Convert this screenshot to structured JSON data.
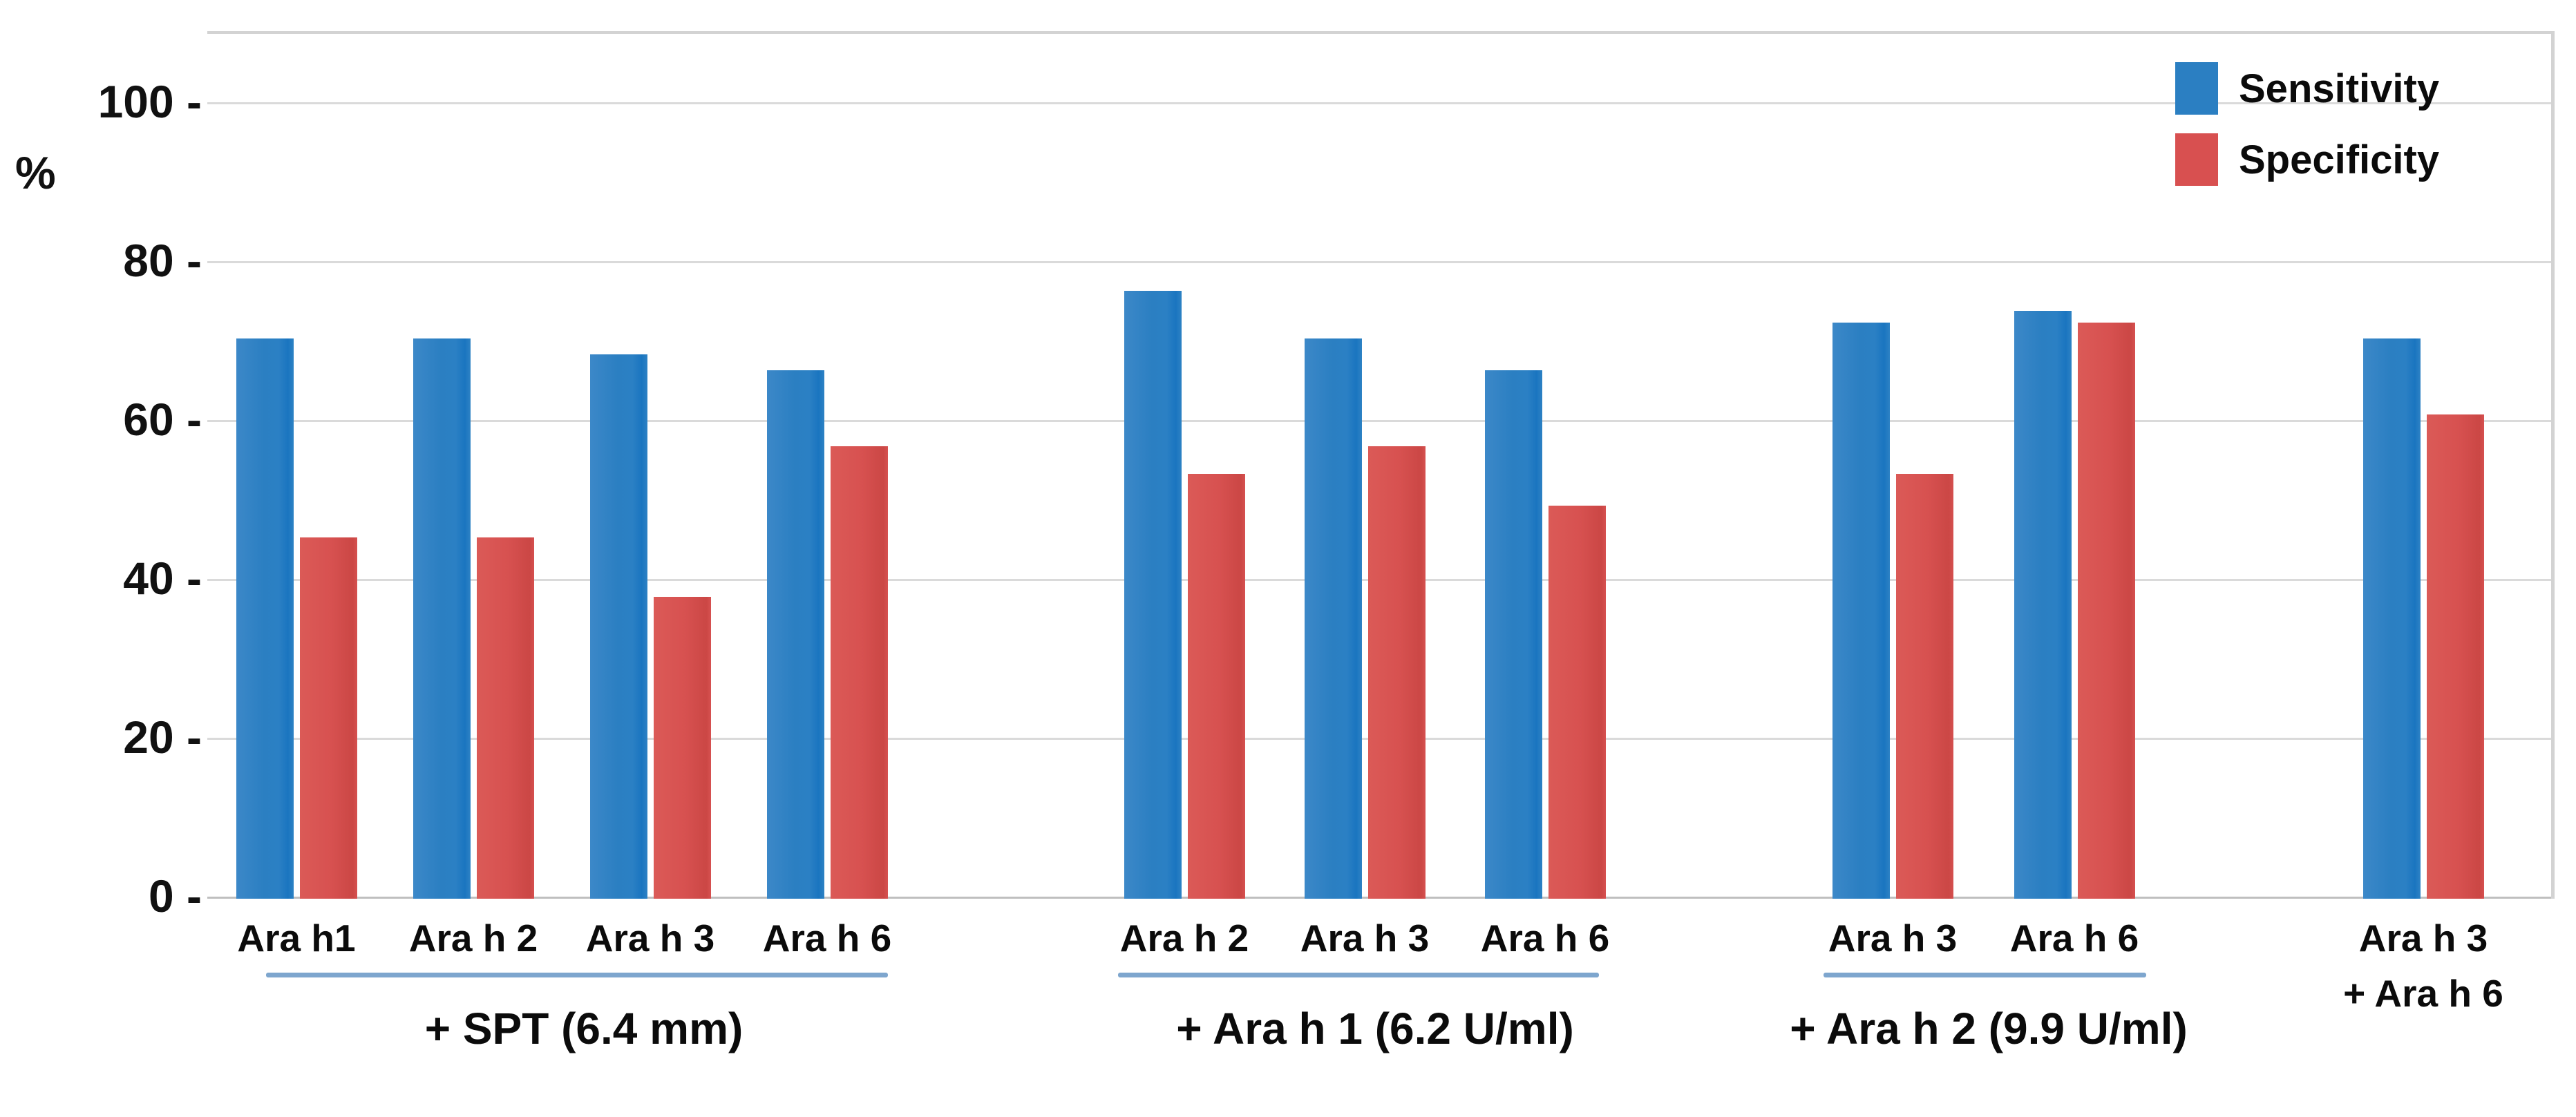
{
  "page": {
    "background": "#ffffff"
  },
  "chart_data": {
    "type": "bar",
    "title": "",
    "ylabel": "%",
    "xlabel": "",
    "grid": true,
    "y_axis": {
      "min": 0,
      "max": 100,
      "ticks": [
        {
          "value": 0,
          "label": "0 -"
        },
        {
          "value": 20,
          "label": "20 -"
        },
        {
          "value": 40,
          "label": "40 -"
        },
        {
          "value": 60,
          "label": "60 -"
        },
        {
          "value": 80,
          "label": "80 -"
        },
        {
          "value": 100,
          "label": "100 -"
        }
      ]
    },
    "legend": {
      "position": "top-right",
      "items": [
        {
          "label": "Sensitivity",
          "color": "#2b7fc2"
        },
        {
          "label": "Specificity",
          "color": "#d85050"
        }
      ]
    },
    "series_names": [
      "Sensitivity",
      "Specificity"
    ],
    "groups": [
      {
        "title": "+ SPT (6.4 mm)",
        "underline": true,
        "categories": [
          "Ara h1",
          "Ara h 2",
          "Ara h 3",
          "Ara h 6"
        ],
        "series": [
          {
            "name": "Sensitivity",
            "values": [
              70.5,
              70.5,
              68.5,
              66.5
            ]
          },
          {
            "name": "Specificity",
            "values": [
              45.5,
              45.5,
              38.0,
              57.0
            ]
          }
        ]
      },
      {
        "title": "+ Ara h 1 (6.2 U/ml)",
        "underline": true,
        "categories": [
          "Ara h 2",
          "Ara h 3",
          "Ara h 6"
        ],
        "series": [
          {
            "name": "Sensitivity",
            "values": [
              76.5,
              70.5,
              66.5
            ]
          },
          {
            "name": "Specificity",
            "values": [
              53.5,
              57.0,
              49.5
            ]
          }
        ]
      },
      {
        "title": "+ Ara h 2 (9.9 U/ml)",
        "underline": true,
        "categories": [
          "Ara h 3",
          "Ara h 6"
        ],
        "series": [
          {
            "name": "Sensitivity",
            "values": [
              72.5,
              74.0
            ]
          },
          {
            "name": "Specificity",
            "values": [
              53.5,
              72.5
            ]
          }
        ]
      },
      {
        "title": "",
        "underline": false,
        "categories": [
          "Ara h 3\n+ Ara h 6"
        ],
        "series": [
          {
            "name": "Sensitivity",
            "values": [
              70.5
            ]
          },
          {
            "name": "Specificity",
            "values": [
              61.0
            ]
          }
        ]
      }
    ],
    "colors": {
      "sensitivity": "#2b7fc2",
      "specificity": "#d85050",
      "gridline": "#dadada",
      "axis_line": "#bfbfbf",
      "plot_border": "#d3d3d3",
      "group_underline": "#7ea6ce"
    }
  }
}
